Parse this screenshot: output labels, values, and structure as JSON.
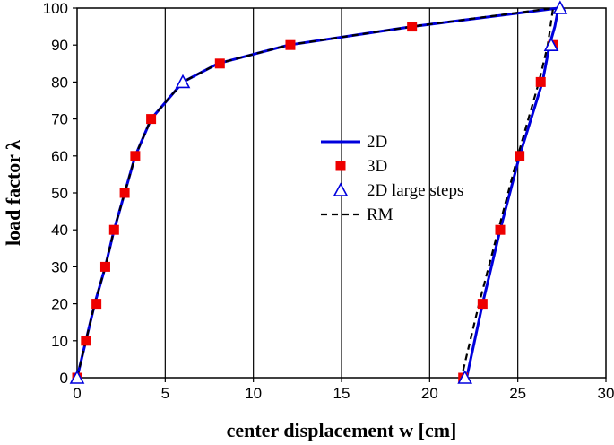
{
  "chart_data": {
    "type": "line",
    "xlabel": "center displacement  w [cm]",
    "ylabel": "load factor λ",
    "xlim": [
      0,
      30
    ],
    "ylim": [
      0,
      100
    ],
    "xticks": [
      0,
      5,
      10,
      15,
      20,
      25,
      30
    ],
    "yticks": [
      0,
      10,
      20,
      30,
      40,
      50,
      60,
      70,
      80,
      90,
      100
    ],
    "grid": "vertical",
    "legend": "center",
    "series": [
      {
        "name": "2D",
        "style": "solid-line",
        "color": "#0000dd",
        "x": [
          0,
          0.5,
          1.0,
          1.6,
          2.1,
          2.7,
          3.3,
          4.2,
          6.0,
          8.0,
          12.0,
          19.0,
          27.3,
          27.1,
          26.8,
          26.4,
          25.1,
          24.0,
          23.0,
          22.1
        ],
        "y": [
          0,
          10,
          20,
          30,
          40,
          50,
          60,
          70,
          80,
          85,
          90,
          95,
          100,
          95,
          90,
          80,
          60,
          40,
          20,
          0
        ]
      },
      {
        "name": "3D",
        "style": "square-marker",
        "color": "#ee0000",
        "x": [
          0,
          0.5,
          1.1,
          1.6,
          2.1,
          2.7,
          3.3,
          4.2,
          8.1,
          12.1,
          19.0,
          27.0,
          26.3,
          25.1,
          24.0,
          23.0,
          21.9
        ],
        "y": [
          0,
          10,
          20,
          30,
          40,
          50,
          60,
          70,
          85,
          90,
          95,
          90,
          80,
          60,
          40,
          20,
          0
        ]
      },
      {
        "name": "2D large steps",
        "style": "triangle-marker",
        "color": "#0000dd",
        "x": [
          0,
          6.0,
          27.4,
          26.9,
          22.0
        ],
        "y": [
          0,
          80,
          100,
          90,
          0
        ]
      },
      {
        "name": "RM",
        "style": "dashed-line",
        "color": "#000000",
        "x": [
          0,
          0.5,
          1.0,
          1.6,
          2.1,
          2.7,
          3.3,
          4.2,
          6.0,
          8.0,
          12.0,
          19.0,
          27.0,
          26.7,
          26.2,
          25.0,
          23.9,
          22.8,
          21.8
        ],
        "y": [
          0,
          10,
          20,
          30,
          40,
          50,
          60,
          70,
          80,
          85,
          90,
          95,
          100,
          90,
          80,
          60,
          40,
          20,
          0
        ]
      }
    ]
  }
}
